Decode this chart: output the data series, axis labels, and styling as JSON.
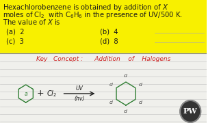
{
  "bg_color": "#f5f5f0",
  "yellow_bg": "#f5f000",
  "text_color": "#1a1a1a",
  "red_color": "#cc2222",
  "green_color": "#2e7d32",
  "dark_green": "#2e7d32",
  "title_line1": "Hexachlorobenzene is obtained by addition of $X$",
  "title_line2": "moles of Cl$_2$  with C$_6$H$_6$ in the presence of UV/500 K.",
  "title_line3": "The value of $X$ is",
  "opt_a": "(a)  2",
  "opt_b": "(b)  4",
  "opt_c": "(c)  3",
  "opt_d": "(d)  8",
  "key_concept": "Key   Concept :      Addition    of    Halogens",
  "watermark_text": "PW",
  "line_color": "#aaaaaa",
  "fig_width": 3.2,
  "fig_height": 1.8,
  "dpi": 100
}
